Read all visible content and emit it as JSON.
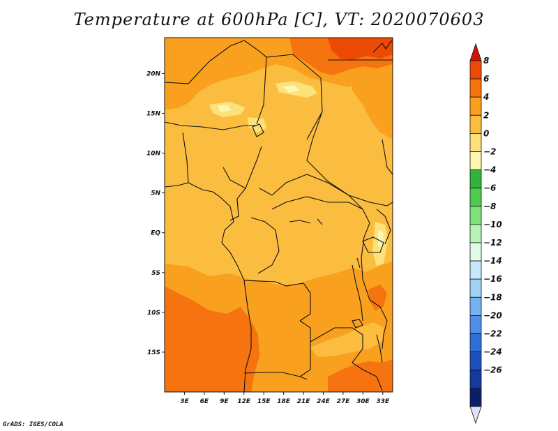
{
  "title": "Temperature at 600hPa [C], VT: 2020070603",
  "credit": "GrADS: IGES/COLA",
  "map": {
    "lon_range": [
      0,
      34.5
    ],
    "lat_range": [
      -20,
      24.5
    ],
    "x_ticks": [
      {
        "value": 3,
        "label": "3E"
      },
      {
        "value": 6,
        "label": "6E"
      },
      {
        "value": 9,
        "label": "9E"
      },
      {
        "value": 12,
        "label": "12E"
      },
      {
        "value": 15,
        "label": "15E"
      },
      {
        "value": 18,
        "label": "18E"
      },
      {
        "value": 21,
        "label": "21E"
      },
      {
        "value": 24,
        "label": "24E"
      },
      {
        "value": 27,
        "label": "27E"
      },
      {
        "value": 30,
        "label": "30E"
      },
      {
        "value": 33,
        "label": "33E"
      }
    ],
    "y_ticks": [
      {
        "value": 20,
        "label": "20N"
      },
      {
        "value": 15,
        "label": "15N"
      },
      {
        "value": 10,
        "label": "10N"
      },
      {
        "value": 5,
        "label": "5N"
      },
      {
        "value": 0,
        "label": "EQ"
      },
      {
        "value": -5,
        "label": "5S"
      },
      {
        "value": -10,
        "label": "10S"
      },
      {
        "value": -15,
        "label": "15S"
      }
    ],
    "colors": {
      "plus0_2": "#fbbd40",
      "plus2_4": "#f9a01f",
      "plus4_6": "#f6740f",
      "plus6_8": "#ec4a05",
      "minus2_0": "#fde17a",
      "minus4_minus2": "#fdf6b0"
    }
  },
  "colorbar": {
    "labels": [
      "8",
      "6",
      "4",
      "2",
      "0",
      "−2",
      "−4",
      "−6",
      "−8",
      "−10",
      "−12",
      "−14",
      "−16",
      "−18",
      "−20",
      "−22",
      "−24",
      "−26"
    ],
    "colors": [
      "#ec4a05",
      "#f6740f",
      "#f9a01f",
      "#fbbd40",
      "#fde17a",
      "#fdf6b0",
      "#33b33d",
      "#4fcb4f",
      "#7fe27f",
      "#b7f3b4",
      "#e1fbe6",
      "#c5e8fb",
      "#a3d2f7",
      "#76b3f0",
      "#4f90e5",
      "#2f6fd8",
      "#1f4fbe",
      "#143a9e",
      "#0a1f6a"
    ],
    "top_color": "#d21404",
    "bottom_color": "#dde0f8"
  }
}
